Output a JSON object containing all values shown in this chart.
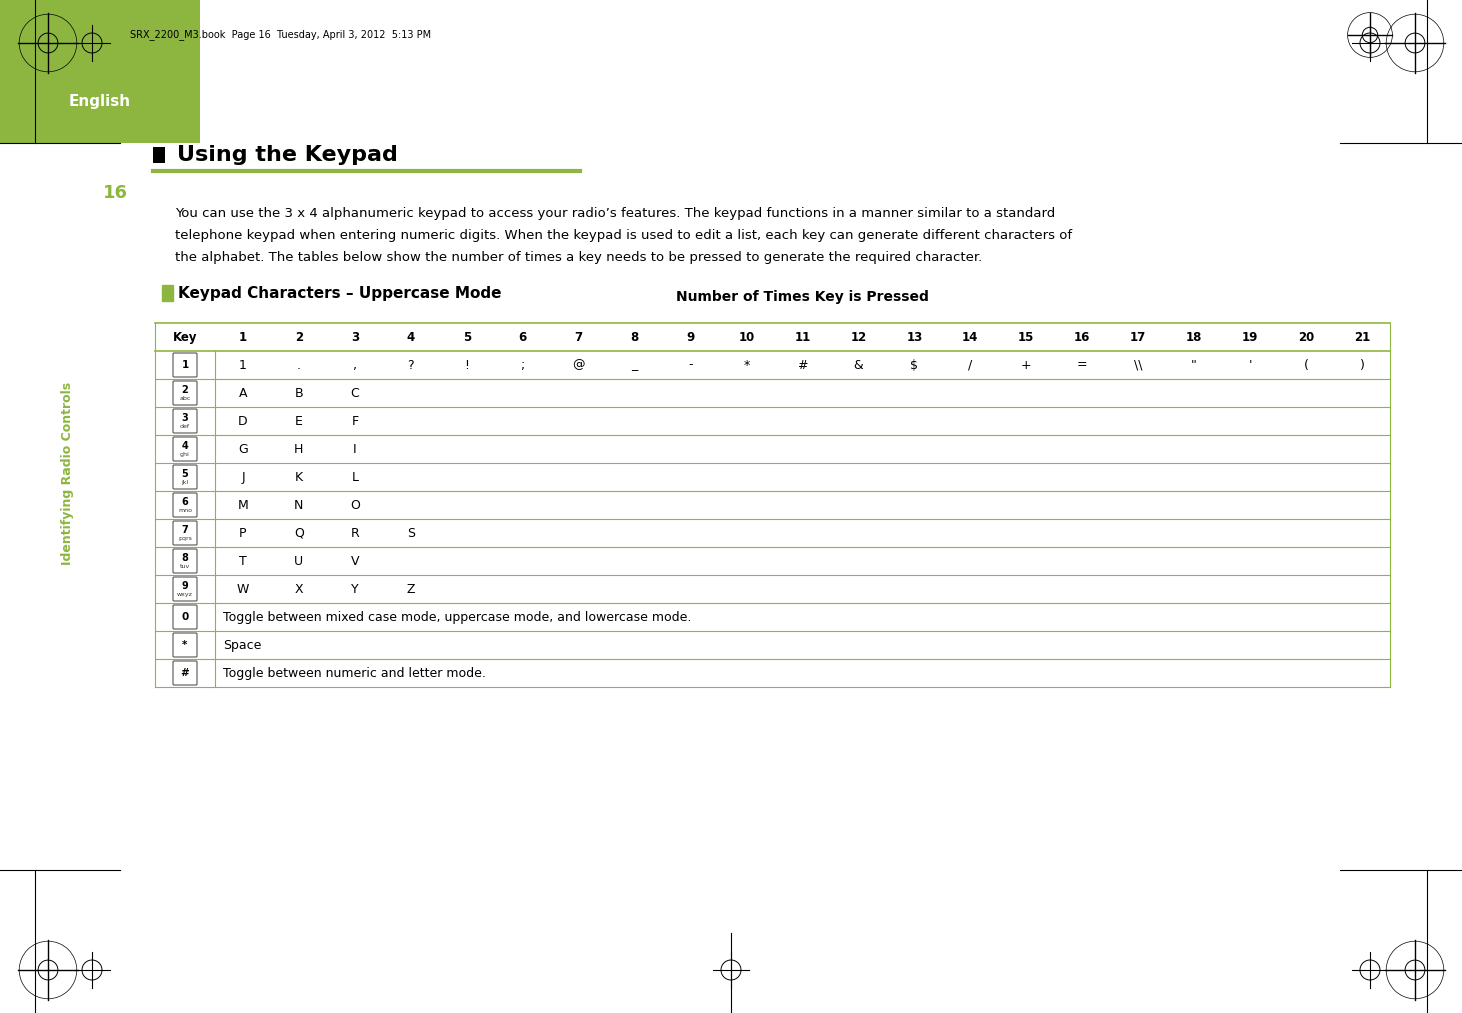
{
  "page_header": "SRX_2200_M3.book  Page 16  Tuesday, April 3, 2012  5:13 PM",
  "section_title": "Using the Keypad",
  "section_title_color": "#000000",
  "title_underline_color": "#8db640",
  "body_text": "You can use the 3 x 4 alphanumeric keypad to access your radio’s features. The keypad functions in a manner similar to a standard\ntelephone keypad when entering numeric digits. When the keypad is used to edit a list, each key can generate different characters of\nthe alphabet. The tables below show the number of times a key needs to be pressed to generate the required character.",
  "subsection_title": "Keypad Characters – Uppercase Mode",
  "subsection_icon_color": "#8db640",
  "table_header": "Number of Times Key is Pressed",
  "col_headers": [
    "Key",
    "1",
    "2",
    "3",
    "4",
    "5",
    "6",
    "7",
    "8",
    "9",
    "10",
    "11",
    "12",
    "13",
    "14",
    "15",
    "16",
    "17",
    "18",
    "19",
    "20",
    "21"
  ],
  "col_header_bold": true,
  "table_rows": [
    {
      "key_label": "1",
      "key_sub": "",
      "chars": [
        "1",
        ".",
        ",",
        "?",
        "!",
        ";",
        "@",
        "_",
        "-",
        "*",
        "#",
        "&",
        "$",
        "/",
        "+",
        "=",
        "\\\\",
        "\"",
        "'",
        "(",
        ")"
      ]
    },
    {
      "key_label": "2",
      "key_sub": "abc",
      "chars": [
        "A",
        "B",
        "C",
        "",
        "",
        "",
        "",
        "",
        "",
        "",
        "",
        "",
        "",
        "",
        "",
        "",
        "",
        "",
        "",
        "",
        ""
      ]
    },
    {
      "key_label": "3",
      "key_sub": "def",
      "chars": [
        "D",
        "E",
        "F",
        "",
        "",
        "",
        "",
        "",
        "",
        "",
        "",
        "",
        "",
        "",
        "",
        "",
        "",
        "",
        "",
        "",
        ""
      ]
    },
    {
      "key_label": "4",
      "key_sub": "ghi",
      "chars": [
        "G",
        "H",
        "I",
        "",
        "",
        "",
        "",
        "",
        "",
        "",
        "",
        "",
        "",
        "",
        "",
        "",
        "",
        "",
        "",
        "",
        ""
      ]
    },
    {
      "key_label": "5",
      "key_sub": "jkl",
      "chars": [
        "J",
        "K",
        "L",
        "",
        "",
        "",
        "",
        "",
        "",
        "",
        "",
        "",
        "",
        "",
        "",
        "",
        "",
        "",
        "",
        "",
        ""
      ]
    },
    {
      "key_label": "6",
      "key_sub": "mno",
      "chars": [
        "M",
        "N",
        "O",
        "",
        "",
        "",
        "",
        "",
        "",
        "",
        "",
        "",
        "",
        "",
        "",
        "",
        "",
        "",
        "",
        "",
        ""
      ]
    },
    {
      "key_label": "7",
      "key_sub": "pqrs",
      "chars": [
        "P",
        "Q",
        "R",
        "S",
        "",
        "",
        "",
        "",
        "",
        "",
        "",
        "",
        "",
        "",
        "",
        "",
        "",
        "",
        "",
        "",
        ""
      ]
    },
    {
      "key_label": "8",
      "key_sub": "tuv",
      "chars": [
        "T",
        "U",
        "V",
        "",
        "",
        "",
        "",
        "",
        "",
        "",
        "",
        "",
        "",
        "",
        "",
        "",
        "",
        "",
        "",
        "",
        ""
      ]
    },
    {
      "key_label": "9",
      "key_sub": "wxyz",
      "chars": [
        "W",
        "X",
        "Y",
        "Z",
        "",
        "",
        "",
        "",
        "",
        "",
        "",
        "",
        "",
        "",
        "",
        "",
        "",
        "",
        "",
        "",
        ""
      ]
    },
    {
      "key_label": "0",
      "key_sub": "",
      "chars": [
        "Toggle between mixed case mode, uppercase mode, and lowercase mode."
      ],
      "span": true
    },
    {
      "key_label": "*",
      "key_sub": "",
      "chars": [
        "Space"
      ],
      "span": true
    },
    {
      "key_label": "#",
      "key_sub": "",
      "chars": [
        "Toggle between numeric and letter mode."
      ],
      "span": true
    }
  ],
  "table_line_color": "#8db640",
  "table_header_bg": "#ffffff",
  "key_box_color": "#000000",
  "left_sidebar_text": "Identifying Radio Controls",
  "left_sidebar_color": "#8db640",
  "page_number": "16",
  "page_number_color": "#8db640",
  "english_box_color": "#8db640",
  "english_text": "English",
  "background_color": "#ffffff",
  "crosshair_color": "#000000"
}
